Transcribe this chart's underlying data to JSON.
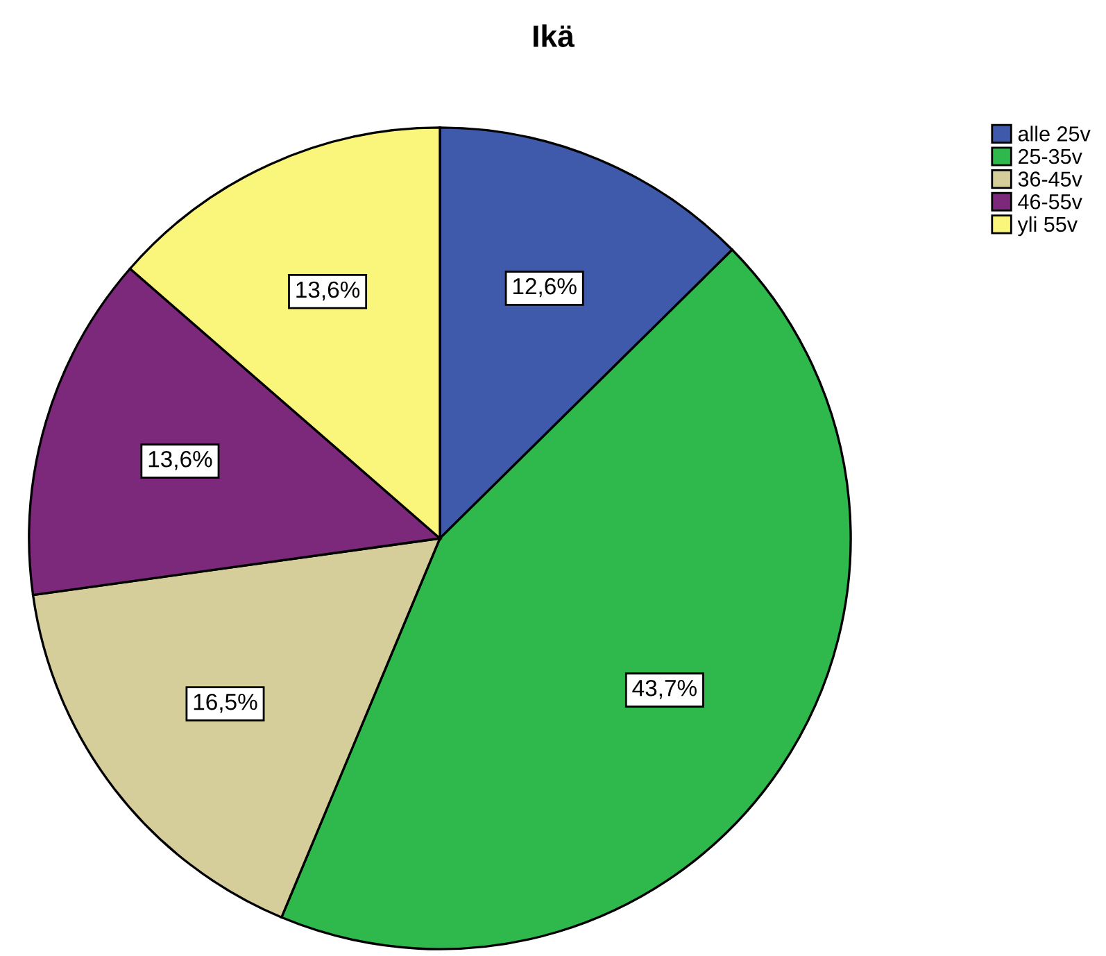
{
  "chart_data": {
    "type": "pie",
    "title": "Ikä",
    "categories": [
      "alle 25v",
      "25-35v",
      "36-45v",
      "46-55v",
      "yli 55v"
    ],
    "values": [
      12.6,
      43.7,
      16.5,
      13.6,
      13.6
    ],
    "value_labels": [
      "12,6%",
      "43,7%",
      "16,5%",
      "13,6%",
      "13,6%"
    ],
    "colors": [
      "#3f5aab",
      "#2fb84b",
      "#d5cd9a",
      "#7c297b",
      "#faf67b"
    ],
    "legend": "top right"
  }
}
